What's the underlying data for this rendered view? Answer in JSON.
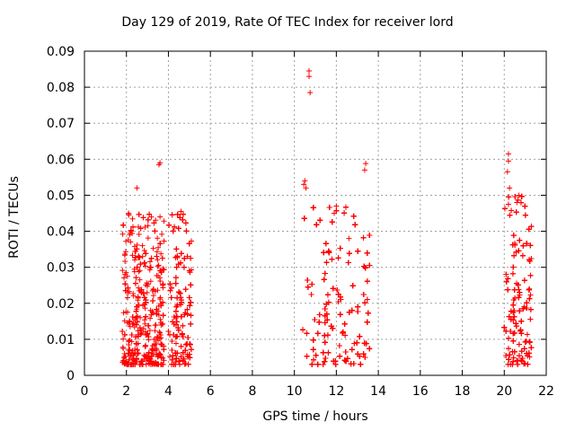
{
  "chart_data": {
    "type": "scatter",
    "title": "Day 129 of 2019, Rate Of TEC Index for receiver lord",
    "xlabel": "GPS time / hours",
    "ylabel": "ROTI / TECUs",
    "xlim": [
      0,
      22
    ],
    "ylim": [
      0,
      0.09
    ],
    "xticks": [
      "0",
      "2",
      "4",
      "6",
      "8",
      "10",
      "12",
      "14",
      "16",
      "18",
      "20",
      "22"
    ],
    "yticks": [
      "0",
      "0.01",
      "0.02",
      "0.03",
      "0.04",
      "0.05",
      "0.06",
      "0.07",
      "0.08",
      "0.09"
    ],
    "grid": true,
    "marker": "+",
    "color": "#ff0000",
    "clusters": [
      {
        "x_range": [
          1.8,
          3.8
        ],
        "y_range": [
          0.003,
          0.045
        ],
        "count": 700
      },
      {
        "x_range": [
          4.0,
          5.1
        ],
        "y_range": [
          0.003,
          0.045
        ],
        "count": 500
      },
      {
        "x_range": [
          10.4,
          13.6
        ],
        "y_range": [
          0.003,
          0.047
        ],
        "count": 1000
      },
      {
        "x_range": [
          20.0,
          21.3
        ],
        "y_range": [
          0.003,
          0.05
        ],
        "count": 500
      }
    ],
    "outliers": [
      {
        "x": 10.7,
        "y": 0.0845
      },
      {
        "x": 10.7,
        "y": 0.083
      },
      {
        "x": 10.75,
        "y": 0.0785
      },
      {
        "x": 3.55,
        "y": 0.0585
      },
      {
        "x": 3.6,
        "y": 0.059
      },
      {
        "x": 2.5,
        "y": 0.052
      },
      {
        "x": 13.4,
        "y": 0.0588
      },
      {
        "x": 13.35,
        "y": 0.057
      },
      {
        "x": 10.5,
        "y": 0.054
      },
      {
        "x": 10.55,
        "y": 0.052
      },
      {
        "x": 10.45,
        "y": 0.053
      },
      {
        "x": 20.2,
        "y": 0.0615
      },
      {
        "x": 20.2,
        "y": 0.0595
      },
      {
        "x": 20.15,
        "y": 0.0565
      },
      {
        "x": 20.25,
        "y": 0.052
      },
      {
        "x": 20.2,
        "y": 0.0475
      },
      {
        "x": 20.7,
        "y": 0.05
      },
      {
        "x": 20.6,
        "y": 0.048
      },
      {
        "x": 21.2,
        "y": 0.024
      },
      {
        "x": 4.6,
        "y": 0.0455
      },
      {
        "x": 3.6,
        "y": 0.044
      },
      {
        "x": 2.1,
        "y": 0.045
      },
      {
        "x": 12.0,
        "y": 0.047
      },
      {
        "x": 11.9,
        "y": 0.045
      },
      {
        "x": 12.6,
        "y": 0.038
      }
    ]
  }
}
